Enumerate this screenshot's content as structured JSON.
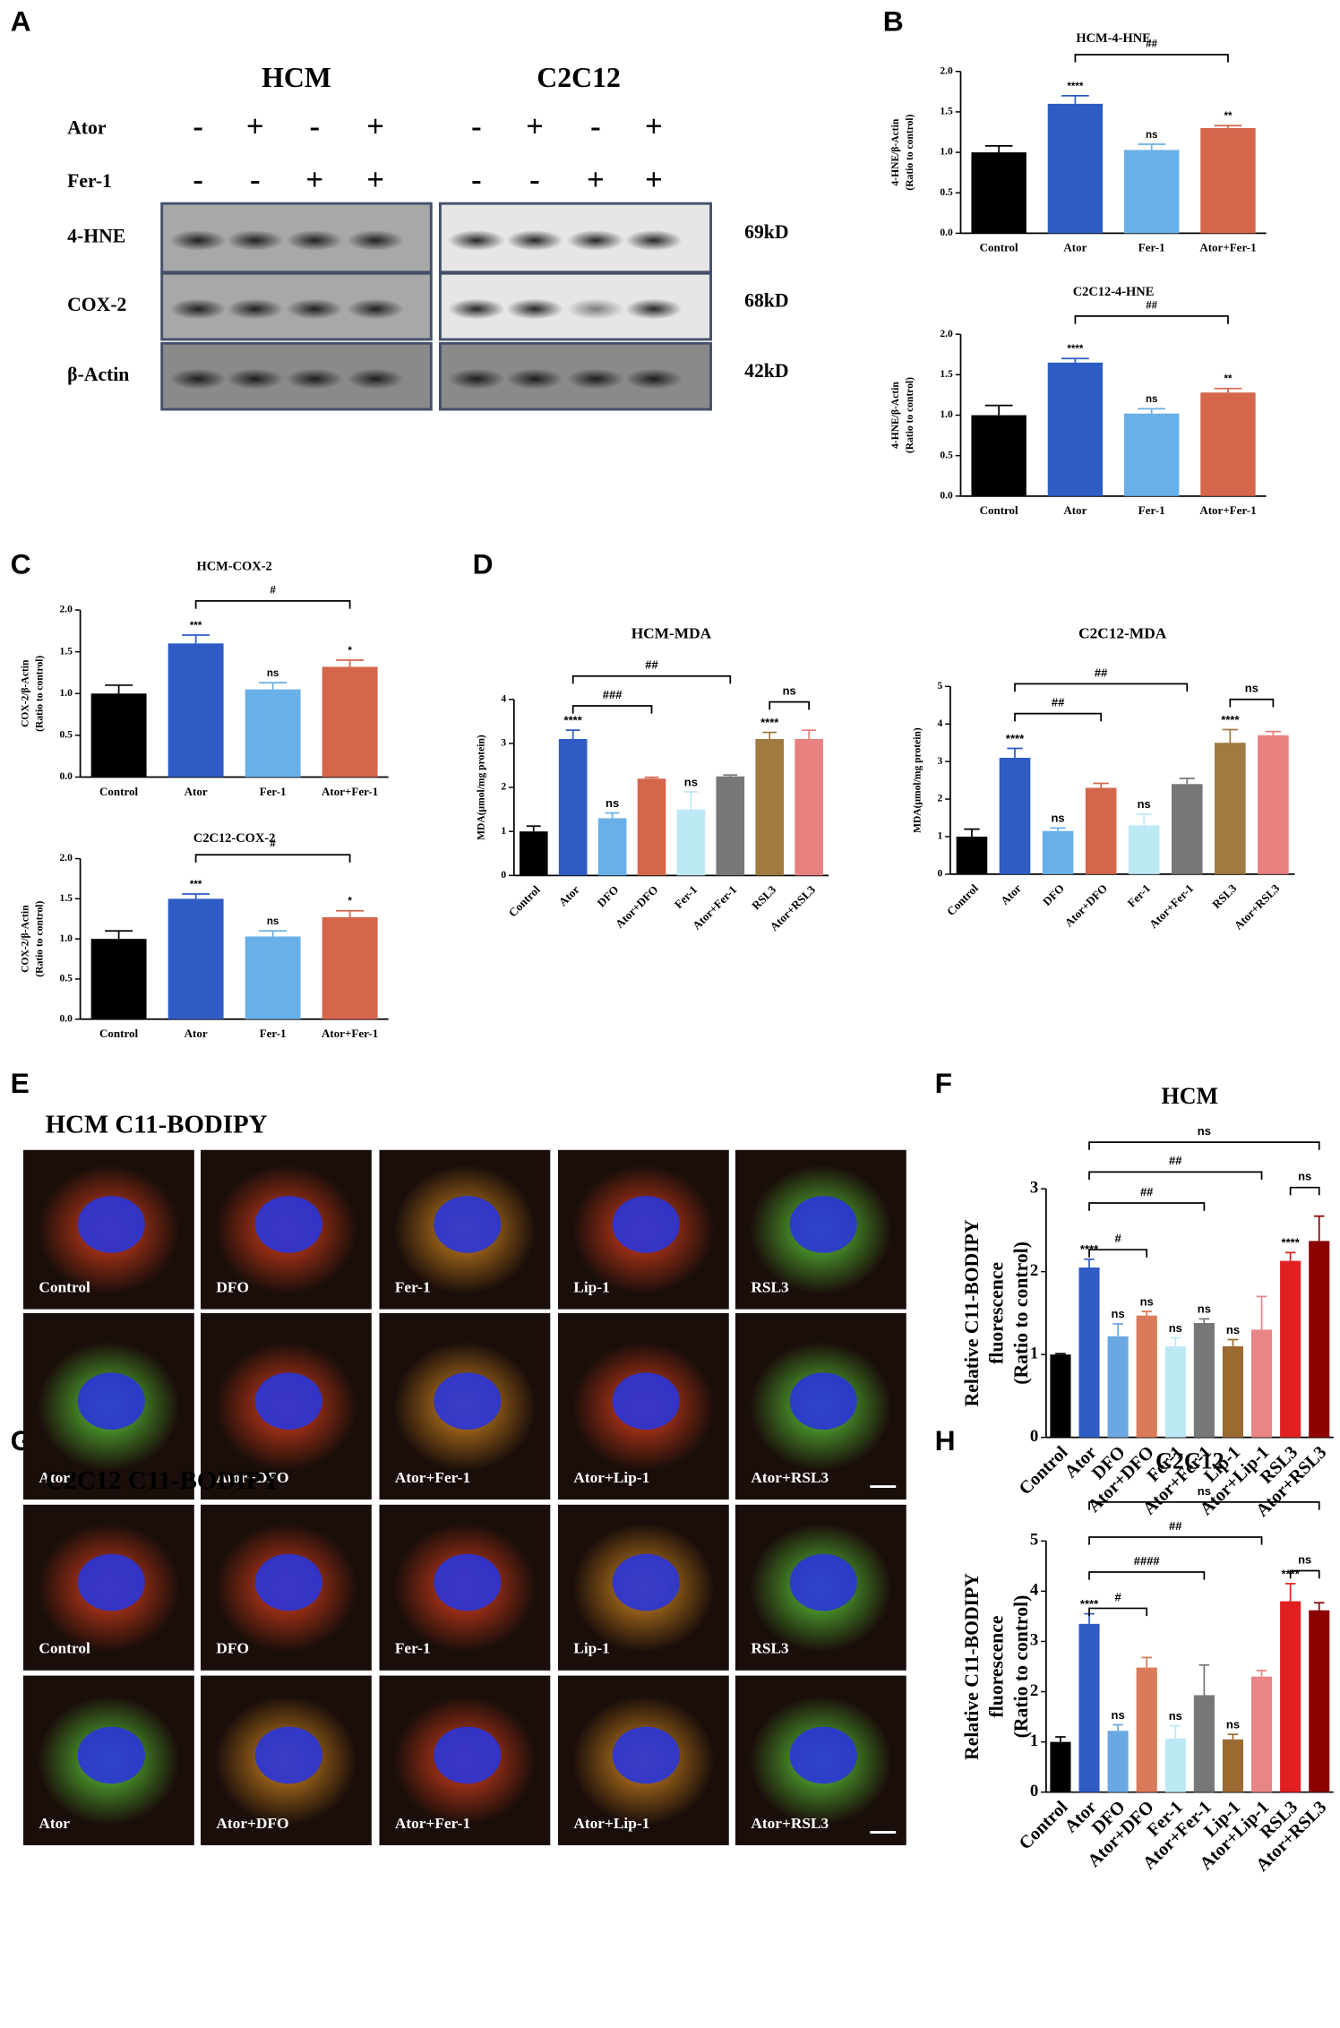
{
  "panels": [
    "A",
    "B",
    "C",
    "D",
    "E",
    "F",
    "G",
    "H"
  ],
  "blot": {
    "groups": [
      "HCM",
      "C2C12"
    ],
    "treatments": [
      {
        "name": "Ator",
        "signs": [
          "-",
          "+",
          "-",
          "+",
          "-",
          "+",
          "-",
          "+"
        ]
      },
      {
        "name": "Fer-1",
        "signs": [
          "-",
          "-",
          "+",
          "+",
          "-",
          "-",
          "+",
          "+"
        ]
      }
    ],
    "proteins": [
      "4-HNE",
      "COX-2",
      "β-Actin"
    ],
    "sizes": [
      "69kD",
      "68kD",
      "42kD"
    ]
  },
  "microscopy": [
    {
      "title": "HCM C11-BODIPY",
      "labels": [
        "Control",
        "DFO",
        "Fer-1",
        "Lip-1",
        "RSL3",
        "Ator",
        "Ator+DFO",
        "Ator+Fer-1",
        "Ator+Lip-1",
        "Ator+RSL3"
      ]
    },
    {
      "title": "C2C12 C11-BODIPY",
      "labels": [
        "Control",
        "DFO",
        "Fer-1",
        "Lip-1",
        "RSL3",
        "Ator",
        "Ator+DFO",
        "Ator+Fer-1",
        "Ator+Lip-1",
        "Ator+RSL3"
      ]
    }
  ],
  "chart_data": [
    {
      "type": "bar",
      "title": "HCM-4-HNE",
      "y_label": [
        "4-HNE/β-Actin",
        "(Ratio to control)"
      ],
      "categories": [
        "Control",
        "Ator",
        "Fer-1",
        "Ator+Fer-1"
      ],
      "values": [
        1.0,
        1.6,
        1.03,
        1.3
      ],
      "errors": [
        0.08,
        0.1,
        0.07,
        0.03
      ],
      "colors": [
        "#000000",
        "#2f5cc4",
        "#6ab0e8",
        "#d4664c"
      ],
      "ylim": [
        0,
        2
      ],
      "yticks": [
        {
          "value": 0,
          "label": "0.0"
        },
        {
          "value": 0.5,
          "label": "0.5"
        },
        {
          "value": 1,
          "label": "1.0"
        },
        {
          "value": 1.5,
          "label": "1.5"
        },
        {
          "value": 2,
          "label": "2.0"
        }
      ],
      "annotations": [
        null,
        "****",
        "ns",
        "**"
      ],
      "brackets": [
        {
          "label": "##",
          "from": "Ator",
          "to": "Ator+Fer-1"
        }
      ]
    },
    {
      "type": "bar",
      "title": "C2C12-4-HNE",
      "y_label": [
        "4-HNE/β-Actin",
        "(Ratio to control)"
      ],
      "categories": [
        "Control",
        "Ator",
        "Fer-1",
        "Ator+Fer-1"
      ],
      "values": [
        1.0,
        1.65,
        1.02,
        1.28
      ],
      "errors": [
        0.12,
        0.05,
        0.06,
        0.05
      ],
      "colors": [
        "#000000",
        "#2f5cc4",
        "#6ab0e8",
        "#d4664c"
      ],
      "ylim": [
        0,
        2
      ],
      "yticks": [
        {
          "value": 0,
          "label": "0.0"
        },
        {
          "value": 0.5,
          "label": "0.5"
        },
        {
          "value": 1,
          "label": "1.0"
        },
        {
          "value": 1.5,
          "label": "1.5"
        },
        {
          "value": 2,
          "label": "2.0"
        }
      ],
      "annotations": [
        null,
        "****",
        "ns",
        "**"
      ],
      "brackets": [
        {
          "label": "##",
          "from": "Ator",
          "to": "Ator+Fer-1"
        }
      ]
    },
    {
      "type": "bar",
      "title": "HCM-COX-2",
      "y_label": [
        "COX-2/β-Actin",
        "(Ratio to control)"
      ],
      "categories": [
        "Control",
        "Ator",
        "Fer-1",
        "Ator+Fer-1"
      ],
      "values": [
        1.0,
        1.6,
        1.05,
        1.32
      ],
      "errors": [
        0.1,
        0.1,
        0.08,
        0.08
      ],
      "colors": [
        "#000000",
        "#2f5cc4",
        "#6ab0e8",
        "#d4664c"
      ],
      "ylim": [
        0,
        2
      ],
      "yticks": [
        {
          "value": 0,
          "label": "0.0"
        },
        {
          "value": 0.5,
          "label": "0.5"
        },
        {
          "value": 1,
          "label": "1.0"
        },
        {
          "value": 1.5,
          "label": "1.5"
        },
        {
          "value": 2,
          "label": "2.0"
        }
      ],
      "annotations": [
        null,
        "***",
        "ns",
        "*"
      ],
      "brackets": [
        {
          "label": "#",
          "from": "Ator",
          "to": "Ator+Fer-1"
        }
      ]
    },
    {
      "type": "bar",
      "title": "C2C12-COX-2",
      "y_label": [
        "COX-2/β-Actin",
        "(Ratio to control)"
      ],
      "categories": [
        "Control",
        "Ator",
        "Fer-1",
        "Ator+Fer-1"
      ],
      "values": [
        1.0,
        1.5,
        1.03,
        1.27
      ],
      "errors": [
        0.1,
        0.06,
        0.07,
        0.08
      ],
      "colors": [
        "#000000",
        "#2f5cc4",
        "#6ab0e8",
        "#d4664c"
      ],
      "ylim": [
        0,
        2
      ],
      "yticks": [
        {
          "value": 0,
          "label": "0.0"
        },
        {
          "value": 0.5,
          "label": "0.5"
        },
        {
          "value": 1,
          "label": "1.0"
        },
        {
          "value": 1.5,
          "label": "1.5"
        },
        {
          "value": 2,
          "label": "2.0"
        }
      ],
      "annotations": [
        null,
        "***",
        "ns",
        "*"
      ],
      "brackets": [
        {
          "label": "#",
          "from": "Ator",
          "to": "Ator+Fer-1"
        }
      ]
    },
    {
      "type": "bar",
      "title": "HCM-MDA",
      "y_label": [
        "MDA(μmol/mg protein)"
      ],
      "categories": [
        "Control",
        "Ator",
        "DFO",
        "Ator+DFO",
        "Fer-1",
        "Ator+Fer-1",
        "RSL3",
        "Ator+RSL3"
      ],
      "values": [
        1.0,
        3.1,
        1.3,
        2.2,
        1.5,
        2.25,
        3.1,
        3.1
      ],
      "errors": [
        0.12,
        0.2,
        0.12,
        0.03,
        0.4,
        0.03,
        0.15,
        0.2
      ],
      "colors": [
        "#000000",
        "#2f5cc4",
        "#6ab0e8",
        "#d4664c",
        "#bde9f5",
        "#777777",
        "#a07a40",
        "#e88080"
      ],
      "ylim": [
        0,
        4
      ],
      "yticks": [
        0,
        1,
        2,
        3,
        4
      ],
      "annotations": [
        null,
        "****",
        "ns",
        null,
        "ns",
        null,
        "****",
        null
      ],
      "brackets": [
        {
          "label": "###",
          "from": "Ator",
          "to": "Ator+DFO"
        },
        {
          "label": "##",
          "from": "Ator",
          "to": "Ator+Fer-1"
        },
        {
          "label": "ns",
          "from": "RSL3",
          "to": "Ator+RSL3"
        }
      ]
    },
    {
      "type": "bar",
      "title": "C2C12-MDA",
      "y_label": [
        "MDA(μmol/mg protein)"
      ],
      "categories": [
        "Control",
        "Ator",
        "DFO",
        "Ator+DFO",
        "Fer-1",
        "Ator+Fer-1",
        "RSL3",
        "Ator+RSL3"
      ],
      "values": [
        1.0,
        3.1,
        1.15,
        2.3,
        1.3,
        2.4,
        3.5,
        3.7
      ],
      "errors": [
        0.2,
        0.25,
        0.08,
        0.12,
        0.3,
        0.15,
        0.35,
        0.1
      ],
      "colors": [
        "#000000",
        "#2f5cc4",
        "#6ab0e8",
        "#d4664c",
        "#bde9f5",
        "#777777",
        "#a07a40",
        "#e88080"
      ],
      "ylim": [
        0,
        5
      ],
      "yticks": [
        0,
        1,
        2,
        3,
        4,
        5
      ],
      "annotations": [
        null,
        "****",
        "ns",
        null,
        "ns",
        null,
        "****",
        null
      ],
      "brackets": [
        {
          "label": "##",
          "from": "Ator",
          "to": "Ator+DFO"
        },
        {
          "label": "##",
          "from": "Ator",
          "to": "Ator+Fer-1"
        },
        {
          "label": "ns",
          "from": "RSL3",
          "to": "Ator+RSL3"
        }
      ]
    },
    {
      "type": "bar",
      "title": "HCM",
      "y_label": [
        "Relative  C11-BODIPY",
        "fluorescence",
        "(Ratio to control)"
      ],
      "categories": [
        "Control",
        "Ator",
        "DFO",
        "Ator+DFO",
        "Fer-1",
        "Ator+Fer-1",
        "Lip-1",
        "Ator+Lip-1",
        "RSL3",
        "Ator+RSL3"
      ],
      "values": [
        1.0,
        2.05,
        1.22,
        1.47,
        1.1,
        1.38,
        1.1,
        1.3,
        2.13,
        2.37
      ],
      "errors": [
        0.01,
        0.1,
        0.15,
        0.05,
        0.1,
        0.05,
        0.08,
        0.4,
        0.1,
        0.3
      ],
      "colors": [
        "#000000",
        "#2f5cc4",
        "#6aa8e4",
        "#d97a5a",
        "#bde9f5",
        "#777777",
        "#9a6a30",
        "#e88585",
        "#e02020",
        "#8b0000"
      ],
      "ylim": [
        0,
        3
      ],
      "yticks": [
        0,
        1,
        2,
        3
      ],
      "annotations": [
        null,
        "****",
        "ns",
        "ns",
        "ns",
        "ns",
        "ns",
        null,
        "****",
        null
      ],
      "brackets": [
        {
          "label": "#",
          "from": "Ator",
          "to": "Ator+DFO"
        },
        {
          "label": "##",
          "from": "Ator",
          "to": "Ator+Fer-1"
        },
        {
          "label": "##",
          "from": "Ator",
          "to": "Ator+Lip-1"
        },
        {
          "label": "ns",
          "from": "Ator",
          "to": "Ator+RSL3"
        },
        {
          "label": "ns",
          "from": "RSL3",
          "to": "Ator+RSL3"
        }
      ]
    },
    {
      "type": "bar",
      "title": "C2C12",
      "y_label": [
        "Relative  C11-BODIPY",
        "fluorescence",
        "(Ratio to control)"
      ],
      "categories": [
        "Control",
        "Ator",
        "DFO",
        "Ator+DFO",
        "Fer-1",
        "Ator+Fer-1",
        "Lip-1",
        "Ator+Lip-1",
        "RSL3",
        "Ator+RSL3"
      ],
      "values": [
        1.0,
        3.35,
        1.22,
        2.48,
        1.07,
        1.93,
        1.05,
        2.3,
        3.8,
        3.62
      ],
      "errors": [
        0.1,
        0.2,
        0.12,
        0.2,
        0.25,
        0.6,
        0.1,
        0.12,
        0.35,
        0.15
      ],
      "colors": [
        "#000000",
        "#2f5cc4",
        "#6aa8e4",
        "#d97a5a",
        "#bde9f5",
        "#777777",
        "#9a6a30",
        "#e88585",
        "#e02020",
        "#8b0000"
      ],
      "ylim": [
        0,
        5
      ],
      "yticks": [
        0,
        1,
        2,
        3,
        4,
        5
      ],
      "annotations": [
        null,
        "****",
        "ns",
        null,
        "ns",
        null,
        "ns",
        null,
        "****",
        null
      ],
      "brackets": [
        {
          "label": "#",
          "from": "Ator",
          "to": "Ator+DFO"
        },
        {
          "label": "####",
          "from": "Ator",
          "to": "Ator+Fer-1"
        },
        {
          "label": "##",
          "from": "Ator",
          "to": "Ator+Lip-1"
        },
        {
          "label": "ns",
          "from": "Ator",
          "to": "Ator+RSL3"
        },
        {
          "label": "ns",
          "from": "RSL3",
          "to": "Ator+RSL3"
        }
      ]
    }
  ]
}
